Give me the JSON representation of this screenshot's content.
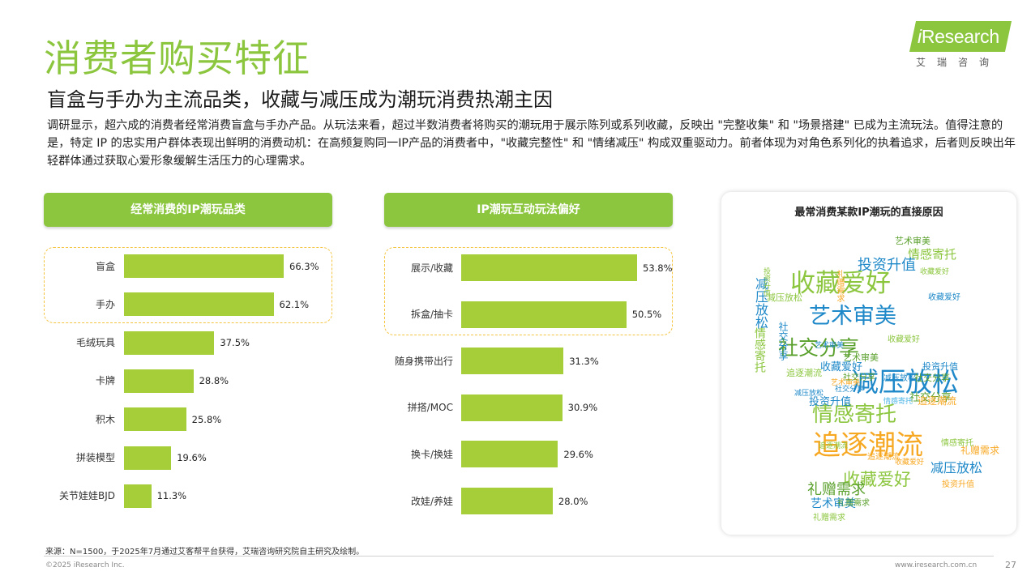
{
  "page": {
    "title": "消费者购买特征",
    "subtitle": "盲盒与手办为主流品类，收藏与减压成为潮玩消费热潮主因",
    "description": "调研显示，超六成的消费者经常消费盲盒与手办产品。从玩法来看，超过半数消费者将购买的潮玩用于展示陈列或系列收藏，反映出 \"完整收集\" 和 \"场景搭建\" 已成为主流玩法。值得注意的是，特定 IP 的忠实用户群体表现出鲜明的消费动机：在高频复购同一IP产品的消费者中，\"收藏完整性\" 和 \"情绪减压\" 构成双重驱动力。前者体现为对角色系列化的执着追求，后者则反映出年轻群体通过获取心爱形象缓解生活压力的心理需求。",
    "source": "来源：N=1500，于2025年7月通过艾客帮平台获得，艾瑞咨询研究院自主研究及绘制。",
    "copyright": "©2025 iResearch Inc.",
    "website": "www.iresearch.com.cn",
    "page_number": "27"
  },
  "logo": {
    "text_i": "i",
    "text_rest": "Research",
    "cn": "艾瑞咨询",
    "brand_color": "#8cc63f"
  },
  "chart_data": [
    {
      "type": "bar",
      "orientation": "horizontal",
      "title": "经常消费的IP潮玩品类",
      "categories": [
        "盲盒",
        "手办",
        "毛绒玩具",
        "卡牌",
        "积木",
        "拼装模型",
        "关节娃娃BJD"
      ],
      "values": [
        66.3,
        62.1,
        37.5,
        28.8,
        25.8,
        19.6,
        11.3
      ],
      "labels": [
        "66.3%",
        "62.1%",
        "37.5%",
        "28.8%",
        "25.8%",
        "19.6%",
        "11.3%"
      ],
      "unit": "%",
      "highlighted": [
        "盲盒",
        "手办"
      ],
      "bar_color": "#a6ce39",
      "highlight_border_color": "#f5c542"
    },
    {
      "type": "bar",
      "orientation": "horizontal",
      "title": "IP潮玩互动玩法偏好",
      "categories": [
        "展示/收藏",
        "拆盒/抽卡",
        "随身携带出行",
        "拼搭/MOC",
        "换卡/换娃",
        "改娃/养娃"
      ],
      "values": [
        53.8,
        50.5,
        31.3,
        30.9,
        29.6,
        28.0
      ],
      "labels": [
        "53.8%",
        "50.5%",
        "31.3%",
        "30.9%",
        "29.6%",
        "28.0%"
      ],
      "unit": "%",
      "highlighted": [
        "展示/收藏",
        "拆盒/抽卡"
      ],
      "bar_color": "#a6ce39",
      "highlight_border_color": "#f5c542"
    }
  ],
  "word_cloud": {
    "title": "最常消费某款IP潮玩的直接原因",
    "palette": [
      "#8cc63f",
      "#1e88c8",
      "#f7a823",
      "#5aa02c",
      "#4cb5e6",
      "#a6ce39"
    ],
    "words": [
      {
        "text": "艺术审美",
        "color": "#5aa02c"
      },
      {
        "text": "情感寄托",
        "color": "#8cc63f"
      },
      {
        "text": "投资升值",
        "color": "#1e88c8"
      },
      {
        "text": "收藏爱好",
        "color": "#8cc63f"
      },
      {
        "text": "艺术审美",
        "color": "#1e88c8"
      },
      {
        "text": "社交分享",
        "color": "#5aa02c"
      },
      {
        "text": "减压放松",
        "color": "#1e88c8"
      },
      {
        "text": "情感寄托",
        "color": "#8cc63f"
      },
      {
        "text": "追逐潮流",
        "color": "#f7a823"
      },
      {
        "text": "收藏爱好",
        "color": "#8cc63f"
      },
      {
        "text": "减压放松",
        "color": "#1e88c8"
      },
      {
        "text": "礼赠需求",
        "color": "#5aa02c"
      },
      {
        "text": "艺术审美",
        "color": "#1e88c8"
      },
      {
        "text": "礼赠需求",
        "color": "#f7a823"
      },
      {
        "text": "投资升值",
        "color": "#1e88c8"
      },
      {
        "text": "社交分享",
        "color": "#5aa02c"
      },
      {
        "text": "追逐潮流",
        "color": "#f7a823"
      },
      {
        "text": "投资升值",
        "color": "#1e88c8"
      },
      {
        "text": "社交分享",
        "color": "#5aa02c"
      },
      {
        "text": "情感寄托",
        "color": "#8cc63f"
      },
      {
        "text": "收藏爱好",
        "color": "#1e88c8"
      },
      {
        "text": "艺术审美",
        "color": "#5aa02c"
      },
      {
        "text": "礼赠需求",
        "color": "#8cc63f"
      },
      {
        "text": "追逐潮流",
        "color": "#f7a823"
      },
      {
        "text": "收藏爱好",
        "color": "#f7a823"
      },
      {
        "text": "减压放松",
        "color": "#1e88c8"
      },
      {
        "text": "情感寄托",
        "color": "#8cc63f"
      },
      {
        "text": "社交分享",
        "color": "#1e88c8"
      },
      {
        "text": "投资升值",
        "color": "#8cc63f"
      },
      {
        "text": "礼赠需求",
        "color": "#f7a823"
      },
      {
        "text": "收藏爱好",
        "color": "#1e88c8"
      },
      {
        "text": "追逐潮流",
        "color": "#8cc63f"
      },
      {
        "text": "减压放松",
        "color": "#1e88c8"
      },
      {
        "text": "艺术审美",
        "color": "#f7a823"
      },
      {
        "text": "收藏爱好",
        "color": "#8cc63f"
      },
      {
        "text": "减压放松",
        "color": "#8cc63f"
      },
      {
        "text": "社交分享",
        "color": "#5aa02c"
      },
      {
        "text": "情感寄托",
        "color": "#4cb5e6"
      },
      {
        "text": "艺术审美",
        "color": "#1e88c8"
      },
      {
        "text": "收藏爱好",
        "color": "#8cc63f"
      },
      {
        "text": "减压放松",
        "color": "#1e88c8"
      },
      {
        "text": "投资升值",
        "color": "#f7a823"
      },
      {
        "text": "礼赠需求",
        "color": "#5aa02c"
      },
      {
        "text": "社交分享",
        "color": "#1e88c8"
      },
      {
        "text": "追逐潮流",
        "color": "#8cc63f"
      }
    ]
  }
}
